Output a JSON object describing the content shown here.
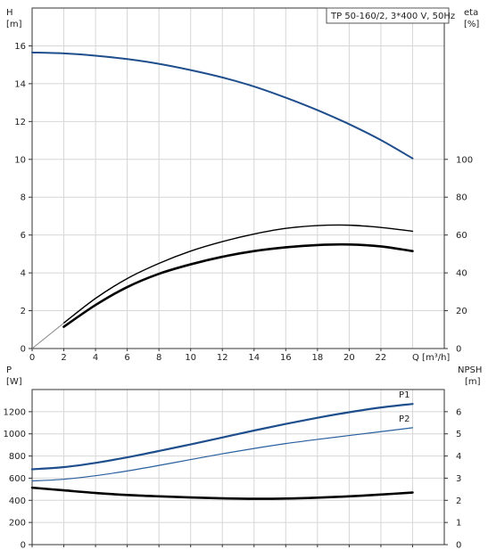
{
  "chart_data": [
    {
      "type": "line",
      "title": "TP 50-160/2, 3*400 V, 50Hz",
      "xlabel": "Q [m³/h]",
      "ylabel_left": [
        "H",
        "[m]"
      ],
      "ylabel_right": [
        "eta",
        "[%]"
      ],
      "xlim": [
        0,
        26
      ],
      "ylim_left": [
        0,
        18
      ],
      "ylim_right": [
        0,
        180
      ],
      "x_ticks": [
        "0",
        "2",
        "4",
        "6",
        "8",
        "10",
        "12",
        "14",
        "16",
        "18",
        "20",
        "22"
      ],
      "y_left_ticks": [
        "0",
        "2",
        "4",
        "6",
        "8",
        "10",
        "12",
        "14",
        "16"
      ],
      "y_right_ticks": [
        "0",
        "20",
        "40",
        "60",
        "80",
        "100"
      ],
      "grid": true,
      "series": [
        {
          "axis": "left",
          "color": "#1f4e8c",
          "x": [
            0,
            2,
            4,
            6,
            8,
            10,
            12,
            14,
            16,
            18,
            20,
            22,
            24
          ],
          "values": [
            15.65,
            15.6,
            15.48,
            15.3,
            15.05,
            14.72,
            14.33,
            13.85,
            13.26,
            12.6,
            11.86,
            11.02,
            10.05
          ]
        },
        {
          "axis": "right",
          "color": "#000000",
          "x": [
            2,
            4,
            6,
            8,
            10,
            12,
            14,
            16,
            18,
            20,
            22,
            24
          ],
          "values": [
            13.5,
            26.5,
            37,
            45,
            51.5,
            56.5,
            60.5,
            63.5,
            65,
            65.2,
            64,
            62
          ]
        },
        {
          "axis": "right",
          "color": "#000000",
          "x": [
            2,
            4,
            6,
            8,
            10,
            12,
            14,
            16,
            18,
            20,
            22,
            24
          ],
          "values": [
            11.5,
            23,
            32.5,
            39.5,
            44.5,
            48.5,
            51.5,
            53.5,
            54.7,
            55,
            54,
            51.5
          ]
        }
      ]
    },
    {
      "type": "line",
      "ylabel_left": [
        "P",
        "[W]"
      ],
      "ylabel_right": [
        "NPSH",
        "[m]"
      ],
      "xlim": [
        0,
        26
      ],
      "ylim_left": [
        0,
        1400
      ],
      "ylim_right": [
        0,
        7
      ],
      "y_left_ticks": [
        "0",
        "200",
        "400",
        "600",
        "800",
        "1000",
        "1200"
      ],
      "y_right_ticks": [
        "0",
        "1",
        "2",
        "3",
        "4",
        "5",
        "6"
      ],
      "grid": true,
      "series": [
        {
          "name": "P1",
          "axis": "left",
          "color": "#1f4e8c",
          "x": [
            0,
            2,
            4,
            6,
            8,
            10,
            12,
            14,
            16,
            18,
            20,
            22,
            24
          ],
          "values": [
            680,
            700,
            738,
            788,
            845,
            905,
            967,
            1030,
            1090,
            1145,
            1195,
            1238,
            1270
          ]
        },
        {
          "name": "P2",
          "axis": "left",
          "color": "#2a5f9e",
          "x": [
            0,
            2,
            4,
            6,
            8,
            10,
            12,
            14,
            16,
            18,
            20,
            22,
            24
          ],
          "values": [
            575,
            590,
            622,
            665,
            715,
            768,
            820,
            868,
            912,
            950,
            985,
            1020,
            1055
          ]
        },
        {
          "axis": "right",
          "color": "#000000",
          "x": [
            0,
            2,
            4,
            6,
            8,
            10,
            12,
            14,
            16,
            18,
            20,
            22,
            24
          ],
          "values": [
            2.57,
            2.45,
            2.33,
            2.24,
            2.18,
            2.13,
            2.09,
            2.07,
            2.08,
            2.12,
            2.18,
            2.26,
            2.35
          ]
        }
      ]
    }
  ]
}
